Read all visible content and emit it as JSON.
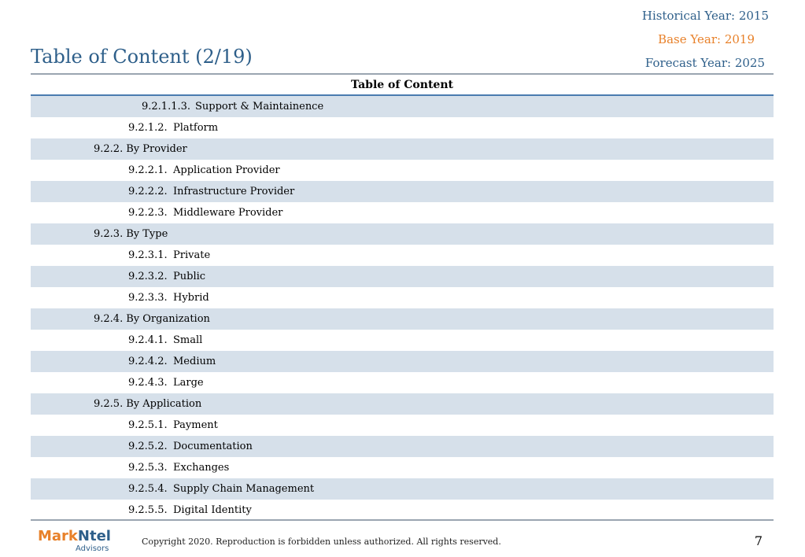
{
  "header": {
    "historical_year": "Historical Year: 2015",
    "base_year": "Base Year: 2019",
    "forecast_year": "Forecast Year: 2025",
    "title": "Table of Content (2/19)"
  },
  "table": {
    "heading": "Table of Content",
    "rows": [
      {
        "level": 3,
        "num": "9.2.1.1.3.",
        "text": "Support & Maintainence",
        "shaded": true
      },
      {
        "level": 2,
        "num": "9.2.1.2.",
        "text": "Platform",
        "shaded": false
      },
      {
        "level": 1,
        "num": "9.2.2.",
        "text": "By Provider",
        "shaded": true
      },
      {
        "level": 2,
        "num": "9.2.2.1.",
        "text": "Application Provider",
        "shaded": false
      },
      {
        "level": 2,
        "num": "9.2.2.2.",
        "text": "Infrastructure Provider",
        "shaded": true
      },
      {
        "level": 2,
        "num": "9.2.2.3.",
        "text": "Middleware Provider",
        "shaded": false
      },
      {
        "level": 1,
        "num": "9.2.3.",
        "text": "By Type",
        "shaded": true
      },
      {
        "level": 2,
        "num": "9.2.3.1.",
        "text": "Private",
        "shaded": false
      },
      {
        "level": 2,
        "num": "9.2.3.2.",
        "text": "Public",
        "shaded": true
      },
      {
        "level": 2,
        "num": "9.2.3.3.",
        "text": "Hybrid",
        "shaded": false
      },
      {
        "level": 1,
        "num": "9.2.4.",
        "text": "By Organization",
        "shaded": true
      },
      {
        "level": 2,
        "num": "9.2.4.1.",
        "text": "Small",
        "shaded": false
      },
      {
        "level": 2,
        "num": "9.2.4.2.",
        "text": "Medium",
        "shaded": true
      },
      {
        "level": 2,
        "num": "9.2.4.3.",
        "text": "Large",
        "shaded": false
      },
      {
        "level": 1,
        "num": "9.2.5.",
        "text": "By Application",
        "shaded": true
      },
      {
        "level": 2,
        "num": "9.2.5.1.",
        "text": "Payment",
        "shaded": false
      },
      {
        "level": 2,
        "num": "9.2.5.2.",
        "text": "Documentation",
        "shaded": true
      },
      {
        "level": 2,
        "num": "9.2.5.3.",
        "text": "Exchanges",
        "shaded": false
      },
      {
        "level": 2,
        "num": "9.2.5.4.",
        "text": "Supply Chain Management",
        "shaded": true
      },
      {
        "level": 2,
        "num": "9.2.5.5.",
        "text": "Digital Identity",
        "shaded": false
      }
    ]
  },
  "footer": {
    "logo_mark": "Mark",
    "logo_ntel": "Ntel",
    "logo_sub": "Advisors",
    "copyright": "Copyright 2020. Reproduction is forbidden unless authorized. All rights reserved.",
    "page_number": "7"
  },
  "colors": {
    "accent_blue": "#2e5f8a",
    "accent_orange": "#e8812a",
    "row_shade": "#d6e0ea"
  }
}
